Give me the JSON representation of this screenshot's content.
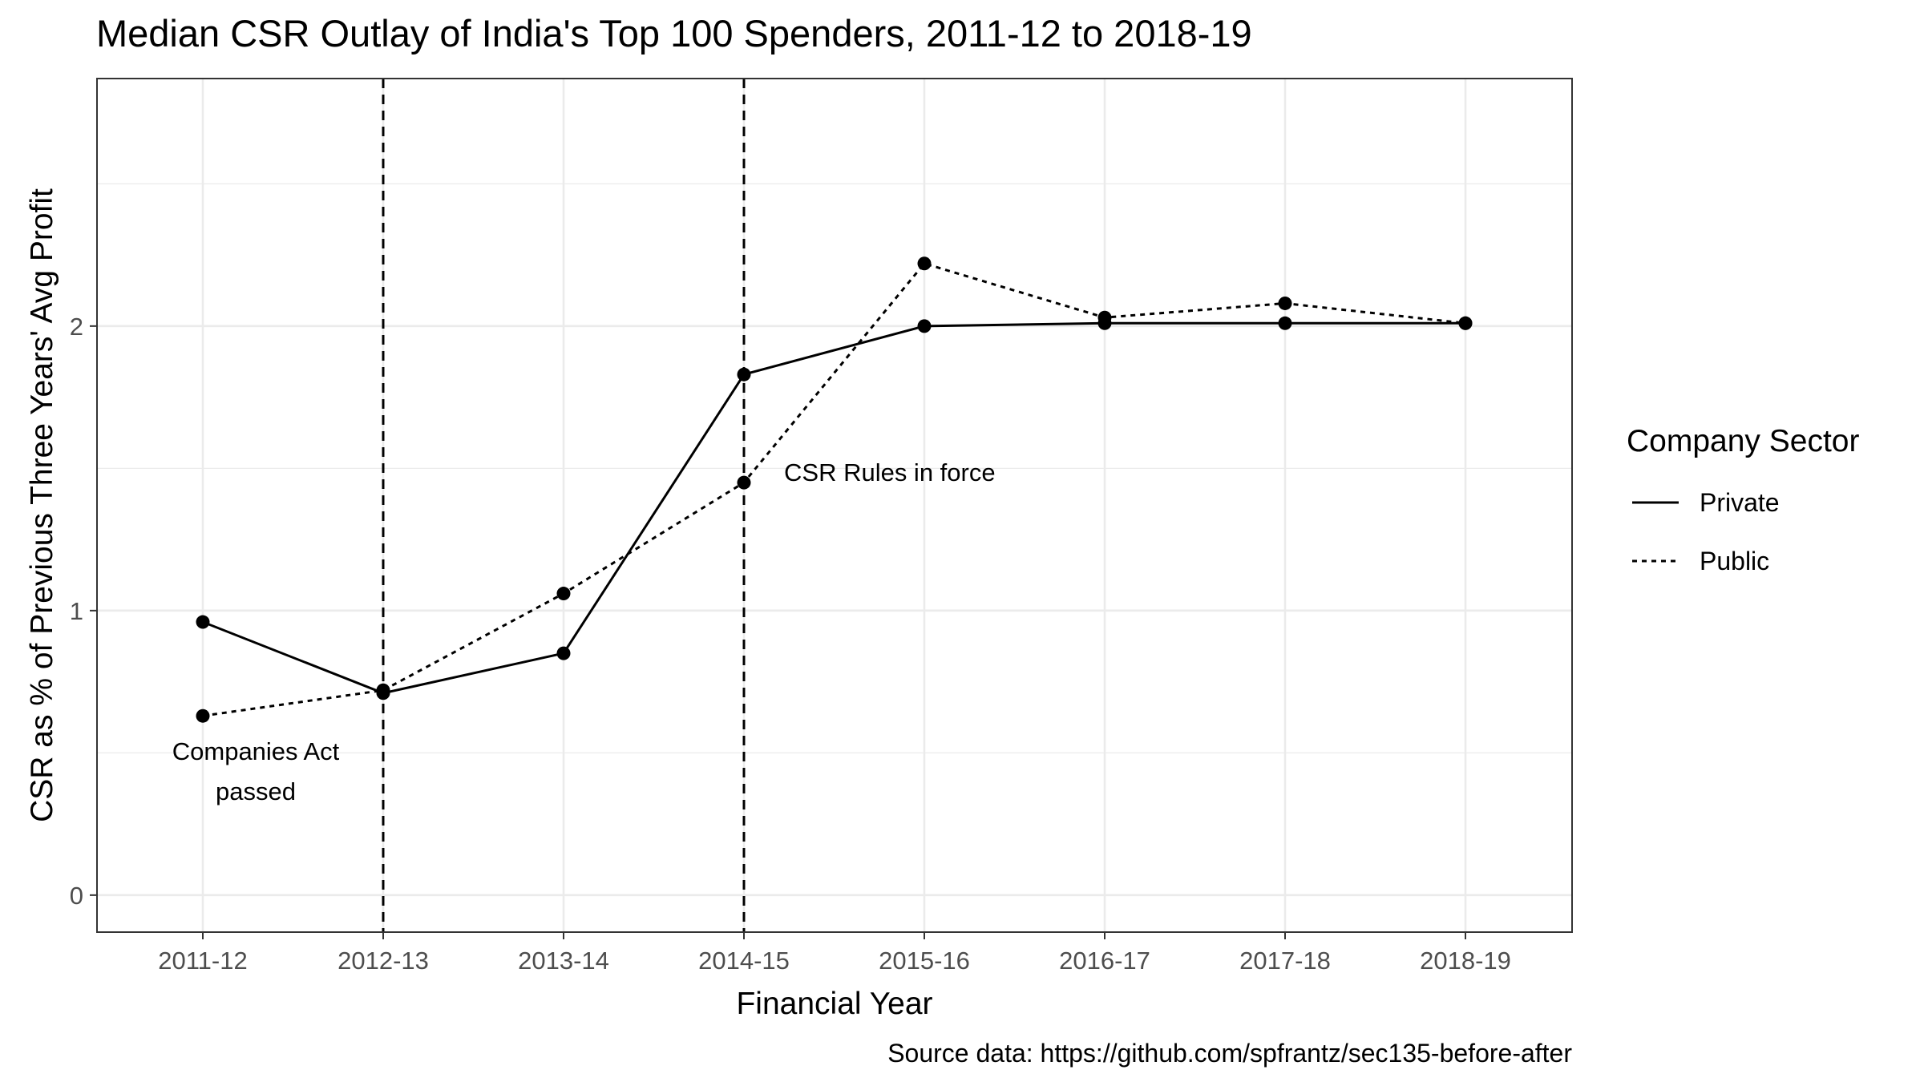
{
  "chart_data": {
    "type": "line",
    "title": "Median CSR Outlay of India's Top 100 Spenders, 2011-12 to 2018-19",
    "xlabel": "Financial Year",
    "ylabel": "CSR as % of Previous Three Years' Avg Profit",
    "caption": "Source data: https://github.com/spfrantz/sec135-before-after",
    "categories": [
      "2011-12",
      "2012-13",
      "2013-14",
      "2014-15",
      "2015-16",
      "2016-17",
      "2017-18",
      "2018-19"
    ],
    "ylim": [
      -0.13,
      2.87
    ],
    "yticks": [
      0,
      1,
      2
    ],
    "grid": true,
    "legend": {
      "title": "Company Sector",
      "placement": "right"
    },
    "series": [
      {
        "name": "Private",
        "linestyle": "solid",
        "values": [
          0.96,
          0.71,
          0.85,
          1.83,
          2.0,
          2.01,
          2.01,
          2.01
        ]
      },
      {
        "name": "Public",
        "linestyle": "dotted",
        "values": [
          0.63,
          0.72,
          1.06,
          1.45,
          2.22,
          2.03,
          2.08,
          2.01
        ]
      }
    ],
    "vlines": [
      {
        "at": "2012-13",
        "label": [
          "Companies Act",
          "passed"
        ]
      },
      {
        "at": "2014-15",
        "label": [
          "CSR Rules in force"
        ]
      }
    ],
    "colors": {
      "line": "#000000",
      "grid": "#ebebeb",
      "panel_border": "#333333",
      "text": "#000000",
      "tick_text": "#4d4d4d"
    }
  }
}
